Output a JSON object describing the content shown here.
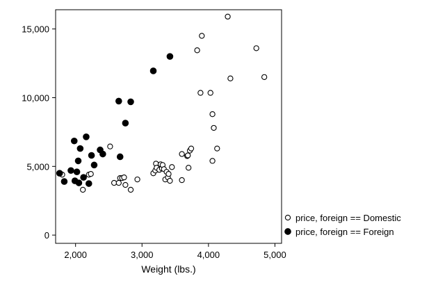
{
  "chart_data": {
    "type": "scatter",
    "xlabel": "Weight (lbs.)",
    "ylabel": "",
    "xlim": [
      1700,
      5100
    ],
    "ylim": [
      -600,
      16400
    ],
    "xticks": [
      2000,
      3000,
      4000,
      5000
    ],
    "xtick_labels": [
      "2,000",
      "3,000",
      "4,000",
      "5,000"
    ],
    "yticks": [
      0,
      5000,
      10000,
      15000
    ],
    "ytick_labels": [
      "0",
      "5,000",
      "10,000",
      "15,000"
    ],
    "grid": false,
    "legend_position": "bottom-right, outside plot",
    "series": [
      {
        "name": "price, foreign == Domestic",
        "marker": "hollow-circle",
        "color": "#000000",
        "points": [
          [
            1800,
            4400
          ],
          [
            2110,
            3300
          ],
          [
            2200,
            4400
          ],
          [
            2230,
            4450
          ],
          [
            2520,
            6450
          ],
          [
            2580,
            3800
          ],
          [
            2650,
            3800
          ],
          [
            2670,
            4150
          ],
          [
            2700,
            4150
          ],
          [
            2730,
            4200
          ],
          [
            2750,
            3650
          ],
          [
            2830,
            3300
          ],
          [
            2930,
            4050
          ],
          [
            3170,
            4500
          ],
          [
            3200,
            4700
          ],
          [
            3210,
            5200
          ],
          [
            3220,
            4900
          ],
          [
            3260,
            4750
          ],
          [
            3280,
            5150
          ],
          [
            3300,
            4850
          ],
          [
            3310,
            5100
          ],
          [
            3330,
            4800
          ],
          [
            3350,
            4050
          ],
          [
            3370,
            4600
          ],
          [
            3390,
            4200
          ],
          [
            3400,
            4450
          ],
          [
            3420,
            3950
          ],
          [
            3450,
            4950
          ],
          [
            3600,
            4000
          ],
          [
            3600,
            5900
          ],
          [
            3680,
            5750
          ],
          [
            3690,
            5800
          ],
          [
            3700,
            4900
          ],
          [
            3720,
            6150
          ],
          [
            3740,
            6300
          ],
          [
            3830,
            13450
          ],
          [
            3900,
            14500
          ],
          [
            3880,
            10350
          ],
          [
            4030,
            10350
          ],
          [
            4060,
            8800
          ],
          [
            4080,
            7800
          ],
          [
            4060,
            5400
          ],
          [
            4130,
            6300
          ],
          [
            4290,
            15900
          ],
          [
            4330,
            11400
          ],
          [
            4720,
            13600
          ],
          [
            4840,
            11500
          ]
        ]
      },
      {
        "name": "price, foreign == Foreign",
        "marker": "filled-circle",
        "color": "#000000",
        "points": [
          [
            1760,
            4500
          ],
          [
            1830,
            3900
          ],
          [
            1930,
            4700
          ],
          [
            1980,
            6850
          ],
          [
            1990,
            3950
          ],
          [
            2020,
            4600
          ],
          [
            2040,
            5400
          ],
          [
            2050,
            3800
          ],
          [
            2070,
            6300
          ],
          [
            2120,
            4200
          ],
          [
            2160,
            7150
          ],
          [
            2200,
            3750
          ],
          [
            2240,
            5800
          ],
          [
            2280,
            5100
          ],
          [
            2370,
            6200
          ],
          [
            2410,
            5900
          ],
          [
            2650,
            9750
          ],
          [
            2670,
            5700
          ],
          [
            2750,
            8150
          ],
          [
            2830,
            9700
          ],
          [
            3170,
            11950
          ],
          [
            3420,
            13000
          ]
        ]
      }
    ]
  }
}
